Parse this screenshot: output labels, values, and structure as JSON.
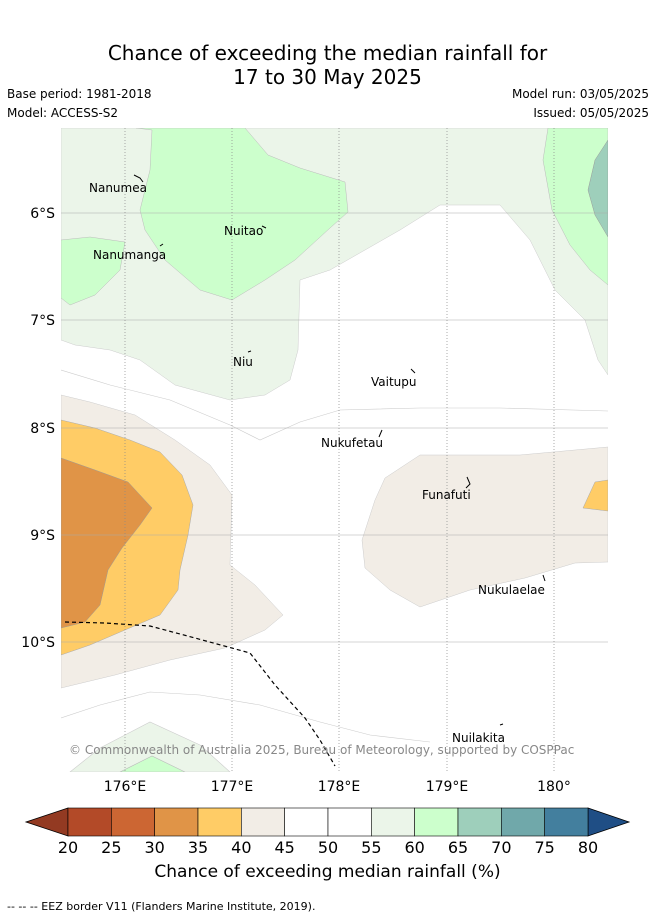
{
  "header": {
    "title_line1": "Chance of exceeding the median rainfall for",
    "title_line2": "17 to 30 May 2025",
    "base_period": "Base period: 1981-2018",
    "model": "Model: ACCESS-S2",
    "model_run": "Model run: 03/05/2025",
    "issued": "Issued: 05/05/2025"
  },
  "map": {
    "lat_labels": [
      "6°S",
      "7°S",
      "8°S",
      "9°S",
      "10°S"
    ],
    "lon_labels": [
      "176°E",
      "177°E",
      "178°E",
      "179°E",
      "180°"
    ],
    "places": [
      {
        "name": "Nanumea"
      },
      {
        "name": "Nanumanga"
      },
      {
        "name": "Nuitao"
      },
      {
        "name": "Niu"
      },
      {
        "name": "Vaitupu"
      },
      {
        "name": "Nukufetau"
      },
      {
        "name": "Funafuti"
      },
      {
        "name": "Nukulaelae"
      },
      {
        "name": "Nuilakita"
      }
    ],
    "copyright": "© Commonwealth of Australia 2025, Bureau of Meteorology, supported by COSPPac"
  },
  "colorbar": {
    "ticks": [
      "20",
      "25",
      "30",
      "35",
      "40",
      "45",
      "50",
      "55",
      "60",
      "65",
      "70",
      "75",
      "80"
    ],
    "colors": [
      "#b34a28",
      "#cc6633",
      "#e09447",
      "#ffcc66",
      "#f2ede6",
      "#ffffff",
      "#ffffff",
      "#ebf5e9",
      "#ccffcc",
      "#9ecfbb",
      "#70a8aa",
      "#437f9e"
    ],
    "low_extend_color": "#933a22",
    "high_extend_color": "#1f4e85",
    "title": "Chance of exceeding median rainfall (%)"
  },
  "footer": {
    "legend": "--  --  -- EEZ border V11 (Flanders Marine Institute, 2019)."
  }
}
